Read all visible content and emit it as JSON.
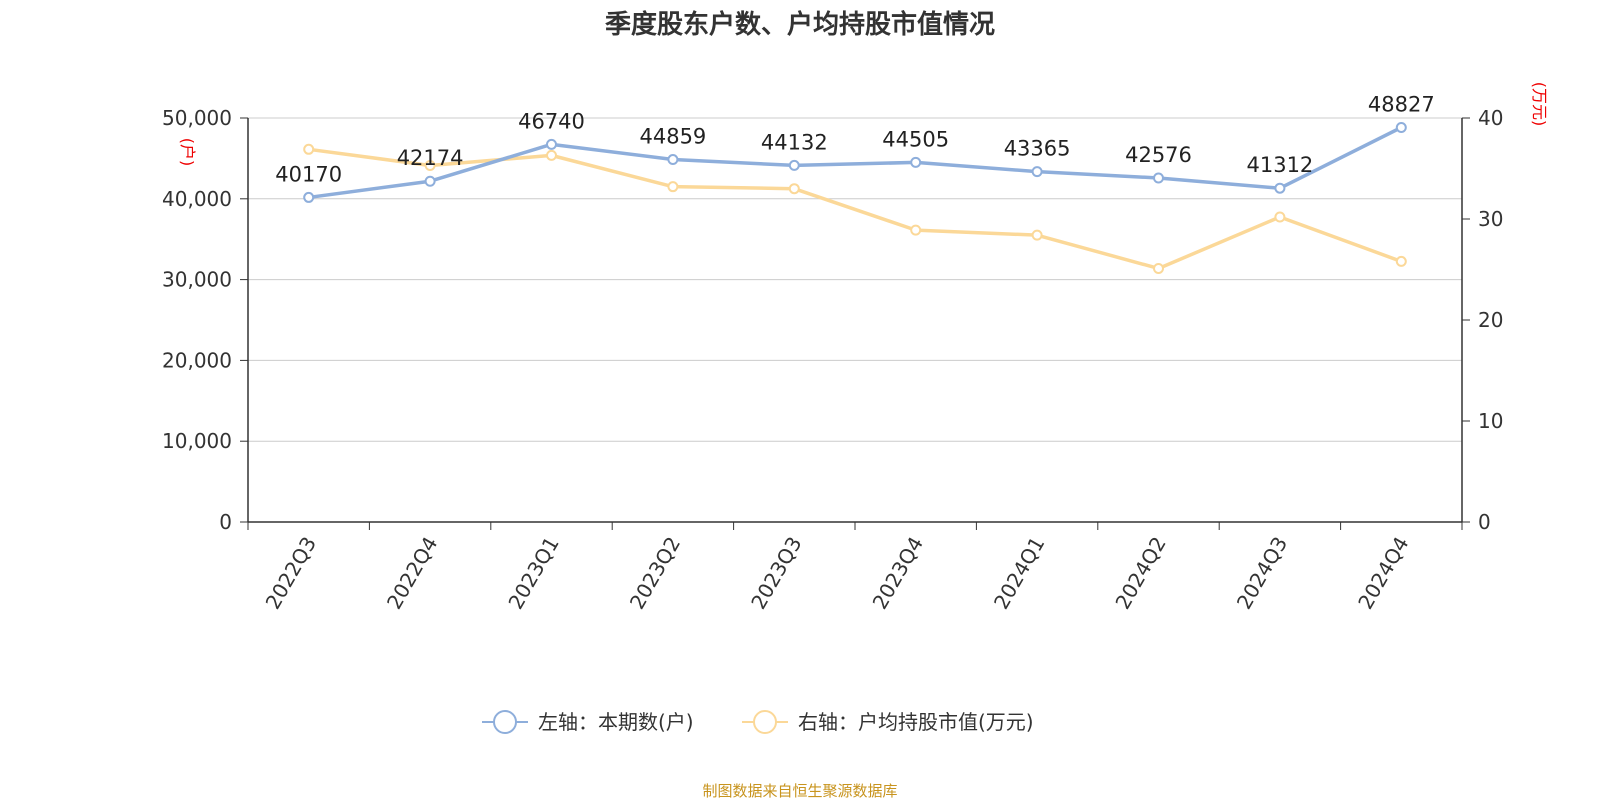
{
  "title": "季度股东户数、户均持股市值情况",
  "source": "制图数据来自恒生聚源数据库",
  "colors": {
    "series_left": "#8eaedb",
    "series_right": "#fbd898",
    "unit": "#ee0000",
    "source": "#c8941e"
  },
  "chart_data": {
    "type": "line",
    "title": "季度股东户数、户均持股市值情况",
    "categories": [
      "2022Q3",
      "2022Q4",
      "2023Q1",
      "2023Q2",
      "2023Q3",
      "2023Q4",
      "2024Q1",
      "2024Q2",
      "2024Q3",
      "2024Q4"
    ],
    "y_left": {
      "unit": "(户)",
      "ylim": [
        0,
        50000
      ],
      "ticks": [
        "0",
        "10,000",
        "20,000",
        "30,000",
        "40,000",
        "50,000"
      ]
    },
    "y_right": {
      "unit": "(万元)",
      "ylim": [
        0,
        40
      ],
      "ticks": [
        "0",
        "10",
        "20",
        "30",
        "40"
      ]
    },
    "grid": true,
    "legend_position": "bottom-center",
    "series": [
      {
        "name": "左轴：本期数(户)",
        "axis": "left",
        "values": [
          40170,
          42174,
          46740,
          44859,
          44132,
          44505,
          43365,
          42576,
          41312,
          48827
        ],
        "labels": [
          "40170",
          "42174",
          "46740",
          "44859",
          "44132",
          "44505",
          "43365",
          "42576",
          "41312",
          "48827"
        ]
      },
      {
        "name": "右轴：户均持股市值(万元)",
        "axis": "right",
        "values": [
          36.9,
          35.3,
          36.3,
          33.2,
          33.0,
          28.9,
          28.4,
          25.1,
          30.2,
          25.8
        ]
      }
    ]
  }
}
